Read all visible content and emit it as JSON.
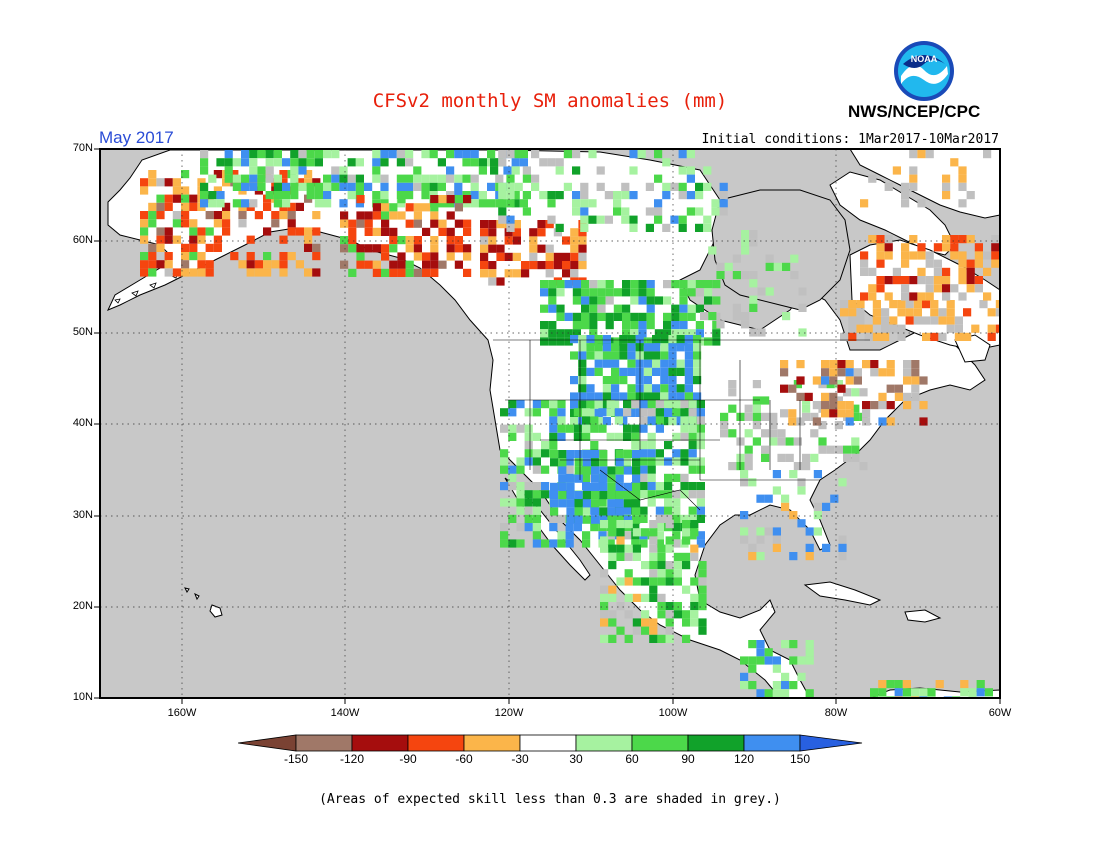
{
  "title": "CFSv2 monthly SM anomalies (mm)",
  "agency": "NWS/NCEP/CPC",
  "logo_text": "NOAA",
  "valid_month": "May 2017",
  "initial_conditions": "Initial conditions: 1Mar2017-10Mar2017",
  "footnote": "(Areas of expected skill less than 0.3 are shaded in grey.)",
  "map": {
    "lon_range": [
      -170,
      -60
    ],
    "lat_range": [
      10,
      70
    ],
    "lat_labels": [
      "70N",
      "60N",
      "50N",
      "40N",
      "30N",
      "20N",
      "10N"
    ],
    "lon_labels": [
      "160W",
      "140W",
      "120W",
      "100W",
      "80W",
      "60W"
    ],
    "grid": "dotted",
    "ocean_color": "#c8c8c8",
    "land_color": "#ffffff"
  },
  "colorbar": {
    "labels": [
      "-150",
      "-120",
      "-90",
      "-60",
      "-30",
      "30",
      "60",
      "90",
      "120",
      "150"
    ],
    "colors": [
      "#7a4233",
      "#a07868",
      "#a50d0d",
      "#f5450f",
      "#fbb54a",
      "#ffffff",
      "#a6f2a0",
      "#4cd84a",
      "#11a22a",
      "#3f8ff0",
      "#2860e0"
    ]
  }
}
